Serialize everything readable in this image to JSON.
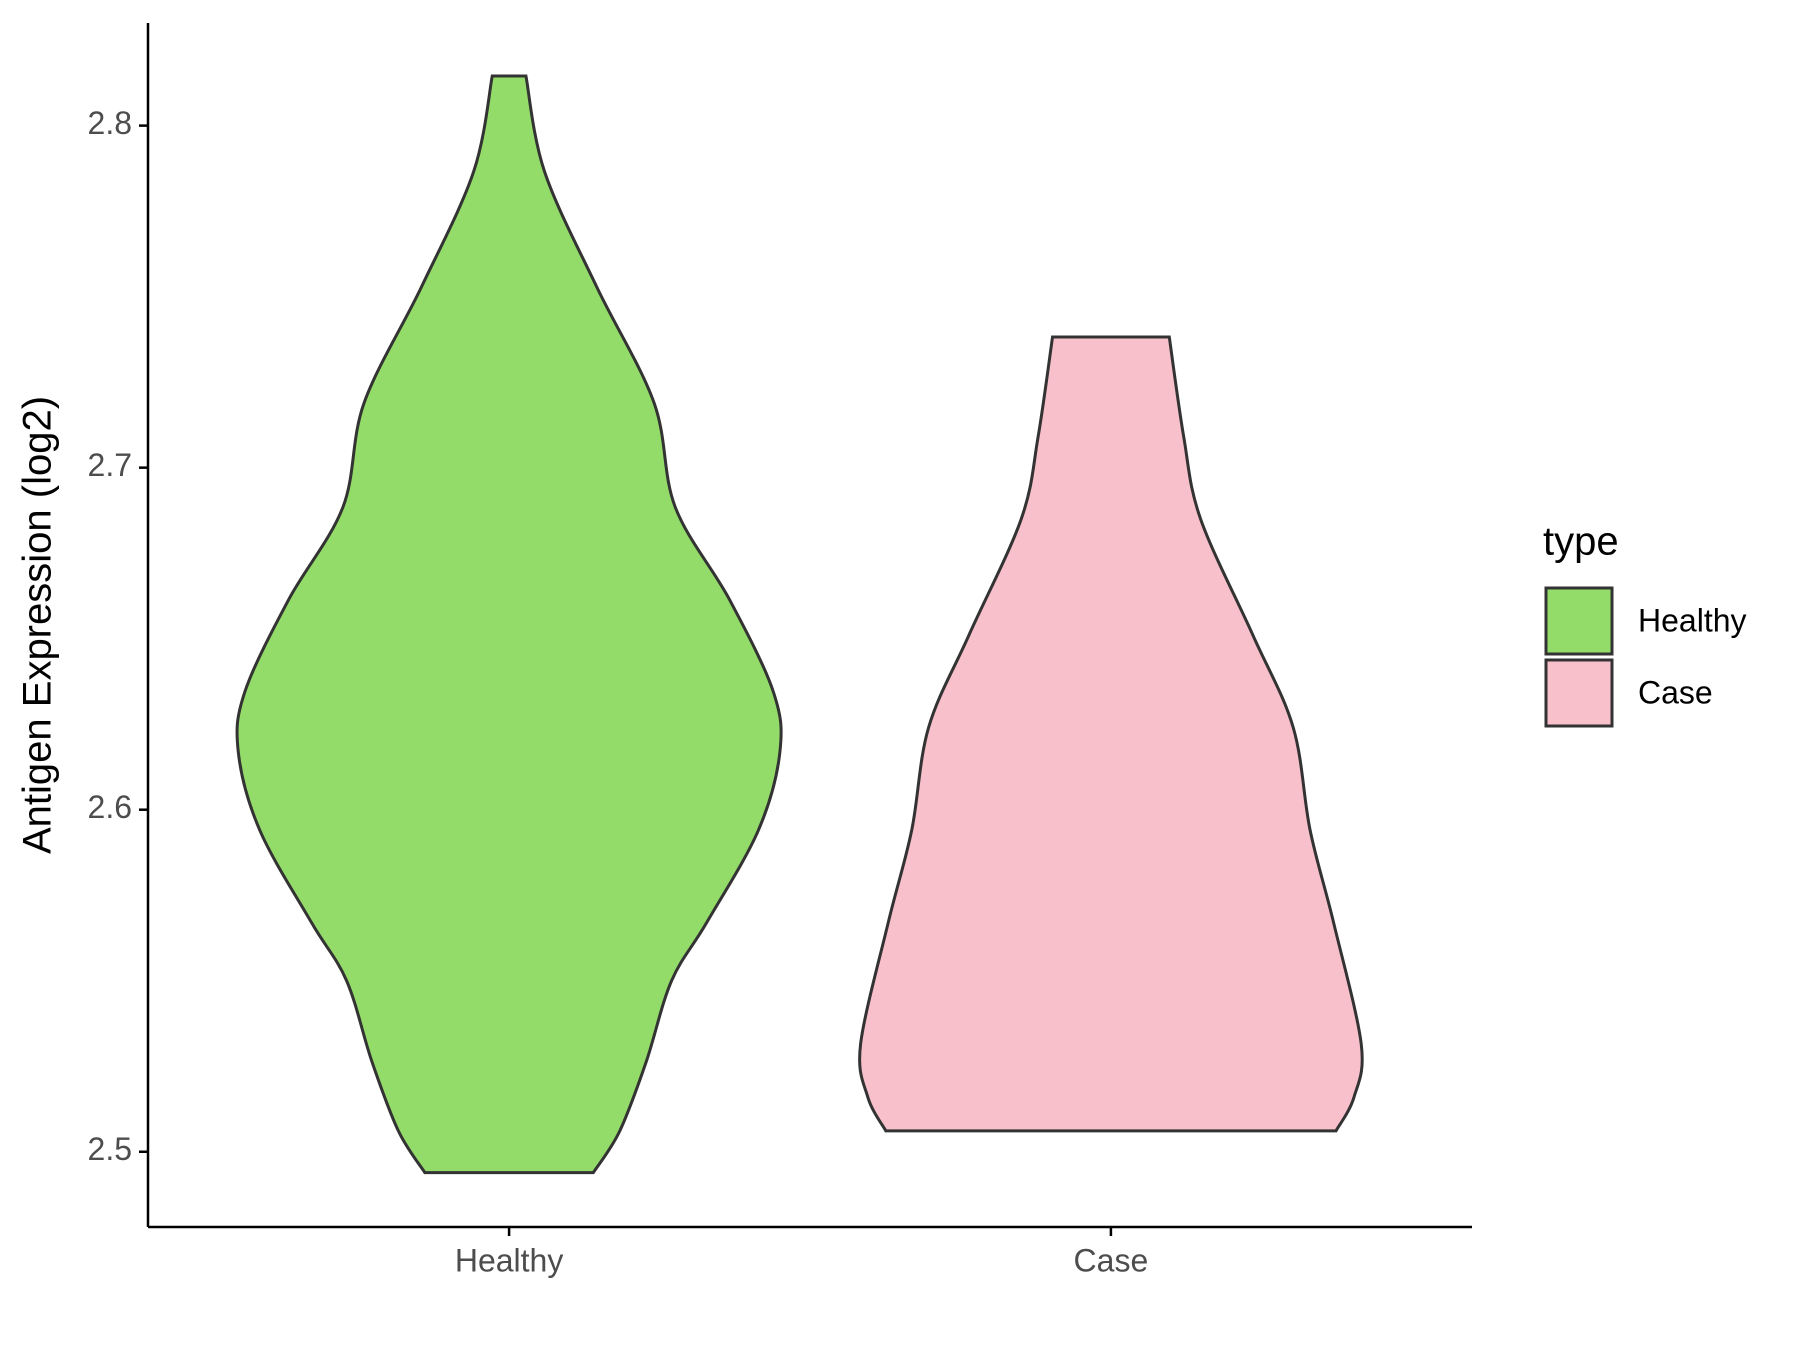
{
  "chart_data": {
    "type": "violin",
    "y_label": "Antigen Expression (log2)",
    "categories": [
      "Healthy",
      "Case"
    ],
    "ylim": [
      2.478,
      2.83
    ],
    "yticks": [
      {
        "value": 2.5,
        "label": "2.5"
      },
      {
        "value": 2.6,
        "label": "2.6"
      },
      {
        "value": 2.7,
        "label": "2.7"
      },
      {
        "value": 2.8,
        "label": "2.8"
      }
    ],
    "legend_title": "type",
    "legend_position": "right",
    "series": [
      {
        "name": "Healthy",
        "color": "#94dc6a",
        "y": [
          2.8145,
          2.7865,
          2.7527,
          2.7189,
          2.6885,
          2.6615,
          2.6345,
          2.6169,
          2.5939,
          2.5669,
          2.55,
          2.5264,
          2.5061,
          2.4939
        ],
        "widths": [
          0.028,
          0.059,
          0.146,
          0.241,
          0.276,
          0.366,
          0.439,
          0.45,
          0.414,
          0.328,
          0.27,
          0.228,
          0.184,
          0.14
        ]
      },
      {
        "name": "Case",
        "color": "#f8c0cb",
        "y": [
          2.7382,
          2.709,
          2.685,
          2.651,
          2.624,
          2.594,
          2.567,
          2.5314,
          2.516,
          2.5061
        ],
        "widths": [
          0.097,
          0.121,
          0.149,
          0.236,
          0.303,
          0.331,
          0.37,
          0.416,
          0.404,
          0.374
        ]
      }
    ]
  }
}
